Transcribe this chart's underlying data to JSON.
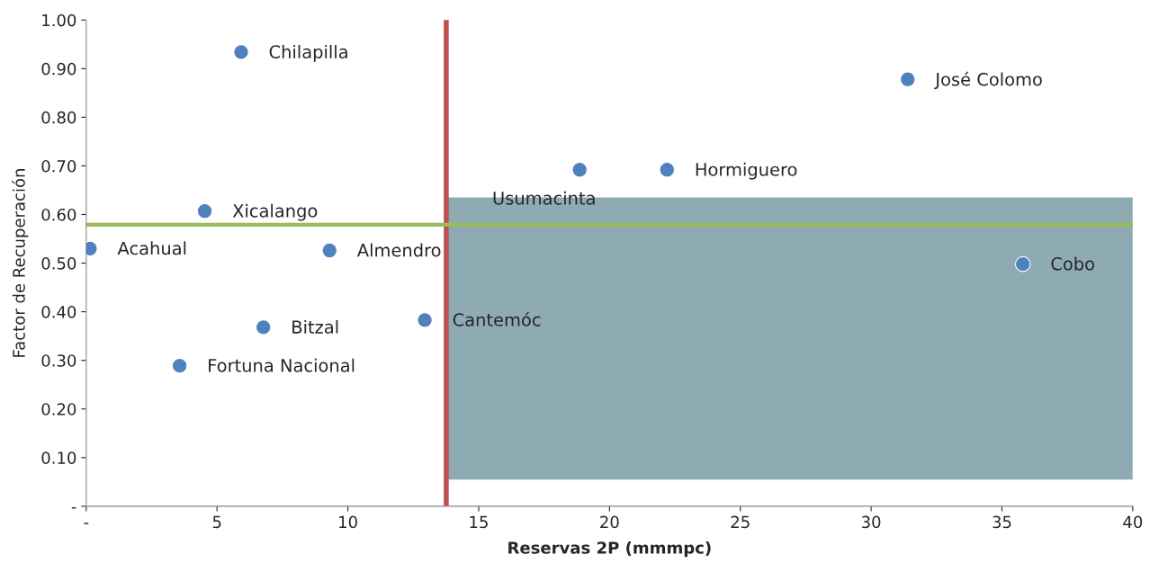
{
  "chart_data": {
    "type": "scatter",
    "xlabel": "Reservas 2P (mmmpc)",
    "ylabel": "Factor de Recuperación",
    "series": [
      {
        "color": "#4f81bd",
        "x": [
          0.14,
          4.53,
          5.92,
          3.57,
          6.77,
          9.3,
          12.94,
          18.86,
          22.2,
          31.4,
          35.8
        ],
        "values": [
          0.53,
          0.607,
          0.934,
          0.289,
          0.368,
          0.526,
          0.383,
          0.692,
          0.692,
          0.878,
          0.498
        ]
      }
    ],
    "annotations": [
      {
        "text": "Acahual",
        "x": 0.14,
        "y": 0.53
      },
      {
        "text": "Xicalango",
        "x": 4.53,
        "y": 0.607
      },
      {
        "text": "Chilapilla",
        "x": 5.92,
        "y": 0.934
      },
      {
        "text": "Fortuna Nacional",
        "x": 3.57,
        "y": 0.289
      },
      {
        "text": "Bitzal",
        "x": 6.77,
        "y": 0.368
      },
      {
        "text": "Almendro",
        "x": 9.3,
        "y": 0.526
      },
      {
        "text": "Cantemóc",
        "x": 12.94,
        "y": 0.383
      },
      {
        "text": "Usumacinta",
        "x": 18.86,
        "y": 0.692
      },
      {
        "text": "Hormiguero",
        "x": 22.2,
        "y": 0.692
      },
      {
        "text": "José Colomo",
        "x": 31.4,
        "y": 0.878
      },
      {
        "text": "Cobo",
        "x": 35.8,
        "y": 0.498
      }
    ],
    "ref_lines": [
      {
        "axis": "x",
        "value": 13.76,
        "color": "#c0504d"
      },
      {
        "axis": "y",
        "value": 0.579,
        "color": "#9bbb59"
      }
    ],
    "bands": [
      {
        "axis": "x",
        "from": 13.76,
        "to": 40,
        "color": "#8eabb4"
      }
    ],
    "marker": "circle",
    "grid": false,
    "legend": false,
    "xlim": [
      0,
      40
    ],
    "xticks": [
      {
        "value": 0,
        "label": "-"
      },
      5,
      10,
      15,
      20,
      25,
      30,
      35,
      40
    ],
    "ylim": [
      0,
      1.0
    ],
    "yticks": [
      {
        "value": 0,
        "label": "-"
      },
      {
        "value": 0.1,
        "label": "0.10"
      },
      {
        "value": 0.2,
        "label": "0.20"
      },
      {
        "value": 0.3,
        "label": "0.30"
      },
      {
        "value": 0.4,
        "label": "0.40"
      },
      {
        "value": 0.5,
        "label": "0.50"
      },
      {
        "value": 0.6,
        "label": "0.60"
      },
      {
        "value": 0.7,
        "label": "0.70"
      },
      {
        "value": 0.8,
        "label": "0.80"
      },
      {
        "value": 0.9,
        "label": "0.90"
      },
      {
        "value": 1.0,
        "label": "1.00"
      }
    ]
  }
}
